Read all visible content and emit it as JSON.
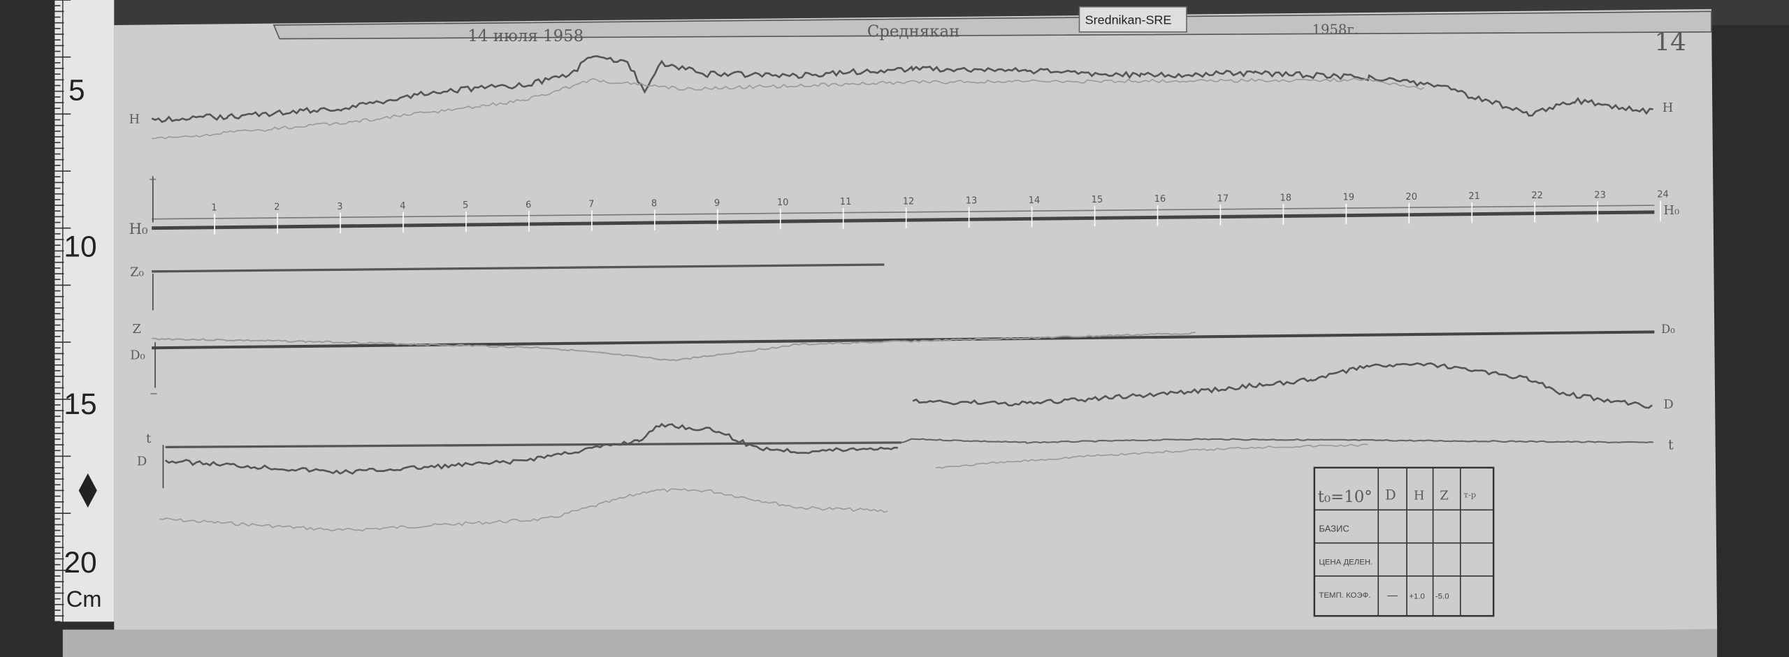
{
  "station_tag": "Srednikan-SRE",
  "header": {
    "date": "14 июля 1958",
    "station": "Среднякан",
    "year": "1958г.",
    "sheet_number": "14"
  },
  "ruler": {
    "marks": [
      "5",
      "10",
      "15",
      "20"
    ],
    "unit": "Cm"
  },
  "hour_ticks": [
    "1",
    "2",
    "3",
    "4",
    "5",
    "6",
    "7",
    "8",
    "9",
    "10",
    "11",
    "12",
    "13",
    "14",
    "15",
    "16",
    "17",
    "18",
    "19",
    "20",
    "21",
    "22",
    "23",
    "24"
  ],
  "trace_labels": {
    "h_left": "H",
    "h_right": "H",
    "h0_left": "H₀",
    "h0_right": "H₀",
    "z0_left": "Z₀",
    "d0_left": "D₀",
    "d0_right": "D₀",
    "z_top": "Z",
    "d_right": "D",
    "t_right": "t",
    "t_left": "t",
    "d_left": "D",
    "plus": "+",
    "minus": "−"
  },
  "table": {
    "header": [
      "t₀=10°",
      "D",
      "H",
      "Z",
      "т-р"
    ],
    "rows": [
      {
        "label": "БАЗИС",
        "cells": [
          "",
          "",
          "",
          ""
        ]
      },
      {
        "label": "ЦЕНА ДЕЛЕН.",
        "cells": [
          "",
          "",
          "",
          ""
        ]
      },
      {
        "label": "ТЕМП. КОЭФ.",
        "cells": [
          "—",
          "+1.0",
          "-5.0",
          ""
        ]
      }
    ]
  },
  "colors": {
    "paper": "#cfcfcf",
    "trace": "#555555",
    "faint_trace": "#9a9a9a",
    "background": "#2a2a2a"
  }
}
